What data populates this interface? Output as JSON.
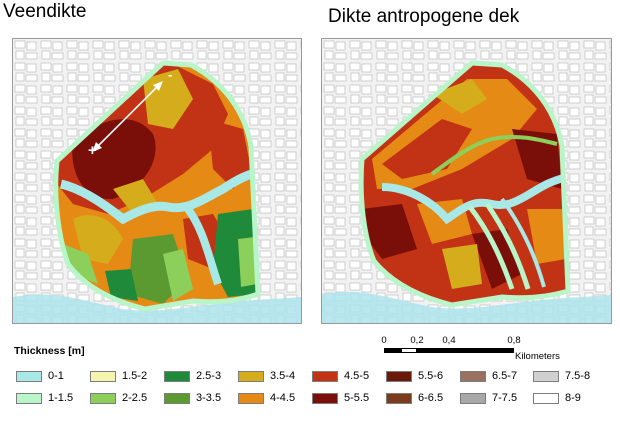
{
  "panels": {
    "left_title": "Veendikte",
    "right_title": "Dikte antropogene dek",
    "arrow_start_symbol": "+",
    "arrow_end_symbol": "-"
  },
  "scale_bar": {
    "ticks": [
      "0",
      "0,2",
      "0,4",
      "0,8"
    ],
    "unit": "Kilometers"
  },
  "legend": {
    "title": "Thickness [m]",
    "items": [
      {
        "label": "0-1",
        "color": "#a8e8e6"
      },
      {
        "label": "1-1.5",
        "color": "#b8f5c8"
      },
      {
        "label": "1.5-2",
        "color": "#f5f5b0"
      },
      {
        "label": "2-2.5",
        "color": "#8ccf5a"
      },
      {
        "label": "2.5-3",
        "color": "#1f8a3a"
      },
      {
        "label": "3-3.5",
        "color": "#5a9a30"
      },
      {
        "label": "3.5-4",
        "color": "#d4ac1c"
      },
      {
        "label": "4-4.5",
        "color": "#e58a14"
      },
      {
        "label": "4.5-5",
        "color": "#c23214"
      },
      {
        "label": "5-5.5",
        "color": "#7a0f0a"
      },
      {
        "label": "5.5-6",
        "color": "#6a1a0a"
      },
      {
        "label": "6-6.5",
        "color": "#7a3c1c"
      },
      {
        "label": "6.5-7",
        "color": "#9a7060"
      },
      {
        "label": "7-7.5",
        "color": "#a8a8a8"
      },
      {
        "label": "7.5-8",
        "color": "#d0d0d0"
      },
      {
        "label": "8-9",
        "color": "#ffffff"
      }
    ]
  }
}
